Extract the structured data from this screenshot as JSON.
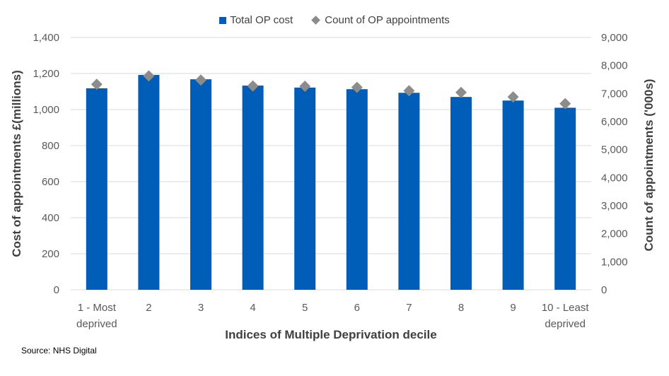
{
  "chart_data": {
    "type": "bar",
    "title": "",
    "xlabel": "Indices of Multiple Deprivation decile",
    "ylabel": "Cost of appointments £(millions)",
    "y2label": "Count of appointments ('000s)",
    "categories": [
      [
        "1 - Most",
        "deprived"
      ],
      [
        "2"
      ],
      [
        "3"
      ],
      [
        "4"
      ],
      [
        "5"
      ],
      [
        "6"
      ],
      [
        "7"
      ],
      [
        "8"
      ],
      [
        "9"
      ],
      [
        "10 - Least",
        "deprived"
      ]
    ],
    "series": [
      {
        "name": "Total OP cost",
        "type": "bar",
        "axis": "left",
        "color": "#005EB8",
        "values": [
          1118,
          1192,
          1168,
          1133,
          1122,
          1113,
          1093,
          1070,
          1050,
          1010
        ]
      },
      {
        "name": "Count of OP appointments",
        "type": "scatter",
        "marker": "diamond",
        "axis": "right",
        "color": "#8C8C8C",
        "values": [
          7330,
          7630,
          7480,
          7270,
          7260,
          7220,
          7100,
          7040,
          6880,
          6640
        ]
      }
    ],
    "ylim": [
      0,
      1400
    ],
    "yticks": [
      "0",
      "200",
      "400",
      "600",
      "800",
      "1,000",
      "1,200",
      "1,400"
    ],
    "y2lim": [
      0,
      9000
    ],
    "y2ticks": [
      "0",
      "1,000",
      "2,000",
      "3,000",
      "4,000",
      "5,000",
      "6,000",
      "7,000",
      "8,000",
      "9,000"
    ],
    "grid": true,
    "legend_position": "top"
  },
  "legend": {
    "bar_label": "Total OP cost",
    "marker_label": "Count of OP appointments"
  },
  "source": "Source: NHS Digital",
  "colors": {
    "gridline": "#D9D9D9",
    "axis_text": "#595959",
    "title_text": "#404040"
  }
}
